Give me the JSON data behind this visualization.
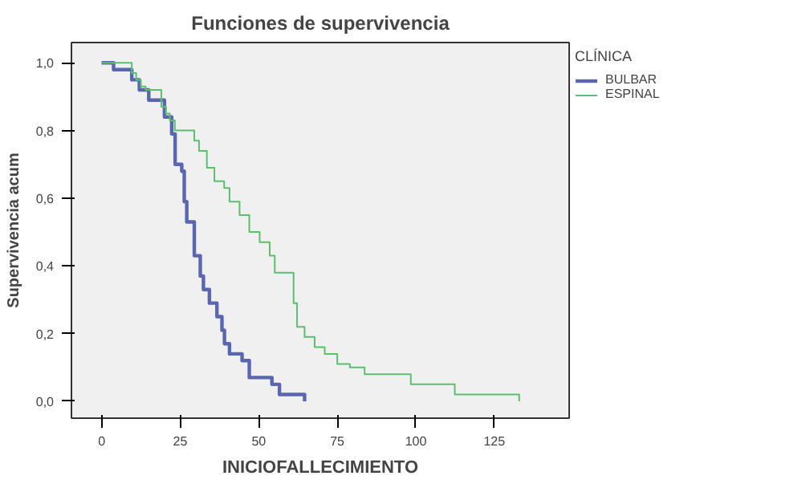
{
  "chart_data": {
    "type": "step",
    "title": "Funciones de supervivencia",
    "xlabel": "INICIOFALLECIMIENTO",
    "ylabel": "Supervivencia acum",
    "legend_title": "CLÍNICA",
    "legend": "top right",
    "grid": false,
    "line_style": "solid",
    "marker": "none",
    "xlim": [
      -9.6,
      148.8
    ],
    "xticks": [
      0,
      25,
      50,
      75,
      100,
      125
    ],
    "ylim": [
      -0.05,
      1.06
    ],
    "yticks": [
      {
        "value": 0,
        "label": "0,0"
      },
      {
        "value": 0.2,
        "label": "0,2"
      },
      {
        "value": 0.4,
        "label": "0,4"
      },
      {
        "value": 0.6,
        "label": "0,6"
      },
      {
        "value": 0.8,
        "label": "0,8"
      },
      {
        "value": 1,
        "label": "1,0"
      }
    ],
    "series": [
      {
        "name": "BULBAR",
        "color": "#5a66b0",
        "x": [
          0,
          3.8,
          9.6,
          12,
          15,
          20,
          22.3,
          23.4,
          25.5,
          26.3,
          27.1,
          29.5,
          31.4,
          32.4,
          34.3,
          36.7,
          38.3,
          39.1,
          40.7,
          44.7,
          47,
          54.2,
          56.6,
          64.6
        ],
        "values": [
          1.0,
          0.98,
          0.95,
          0.92,
          0.89,
          0.84,
          0.79,
          0.7,
          0.68,
          0.59,
          0.53,
          0.43,
          0.37,
          0.33,
          0.29,
          0.25,
          0.21,
          0.17,
          0.14,
          0.12,
          0.07,
          0.05,
          0.02,
          0.0
        ]
      },
      {
        "name": "ESPINAL",
        "color": "#5cbf6e",
        "x": [
          0,
          9.6,
          11,
          12.5,
          14,
          19,
          20.5,
          21.7,
          23.3,
          29.5,
          31,
          33.5,
          35.9,
          39,
          40.7,
          43.9,
          47,
          50.3,
          53.5,
          55.1,
          61.1,
          62.2,
          64.6,
          67.8,
          71,
          75,
          79,
          83.7,
          98.4,
          112.4,
          132.9
        ],
        "values": [
          1.0,
          0.97,
          0.95,
          0.93,
          0.92,
          0.87,
          0.85,
          0.83,
          0.8,
          0.77,
          0.74,
          0.69,
          0.65,
          0.63,
          0.59,
          0.55,
          0.5,
          0.47,
          0.43,
          0.38,
          0.29,
          0.22,
          0.19,
          0.16,
          0.14,
          0.11,
          0.1,
          0.08,
          0.05,
          0.02,
          0.0
        ]
      }
    ]
  }
}
